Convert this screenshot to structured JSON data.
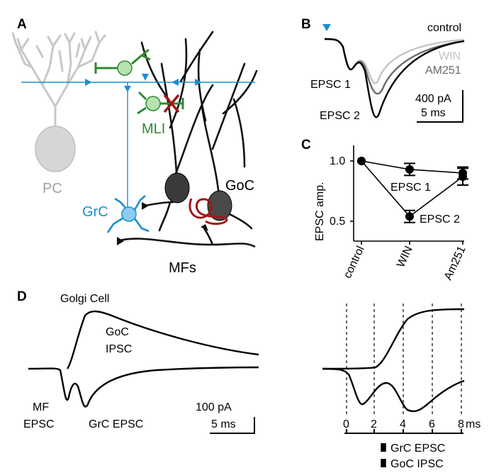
{
  "panels": {
    "a": "A",
    "b": "B",
    "c": "C",
    "d": "D"
  },
  "panel_a": {
    "pc_label": "PC",
    "mli_label": "MLI",
    "goc_label": "GoC",
    "grc_label": "GrC",
    "mf_label": "MFs",
    "colors": {
      "pc": "#c8c8c8",
      "mli": "#2e8b2e",
      "grc": "#1a8fd0",
      "goc": "#333333",
      "inhibit": "#a01818"
    }
  },
  "panel_b": {
    "legend": [
      "control",
      "WIN",
      "AM251"
    ],
    "epsc1_label": "EPSC 1",
    "epsc2_label": "EPSC 2",
    "scale_amp": "400 pA",
    "scale_time": "5  ms"
  },
  "panel_c": {
    "ylabel": "EPSC amp.",
    "yticks": [
      "1.0",
      "0.5"
    ],
    "xticks": [
      "control",
      "WIN",
      "Am251"
    ],
    "epsc1_label": "EPSC 1",
    "epsc2_label": "EPSC 2"
  },
  "chart_data": {
    "type": "line",
    "categories": [
      "control",
      "WIN",
      "Am251"
    ],
    "series": [
      {
        "name": "EPSC 1",
        "values": [
          1.0,
          0.93,
          0.9
        ],
        "errors": [
          0.0,
          0.05,
          0.05
        ]
      },
      {
        "name": "EPSC 2",
        "values": [
          1.0,
          0.54,
          0.87
        ],
        "errors": [
          0.0,
          0.05,
          0.07
        ]
      }
    ],
    "ylabel": "EPSC amp.",
    "ylim": [
      0.4,
      1.05
    ]
  },
  "panel_d": {
    "golgi_label": "Golgi Cell",
    "goc_ipsc_line1": "GoC",
    "goc_ipsc_line2": "IPSC",
    "mf_line1": "MF",
    "mf_line2": "EPSC",
    "grc_epsc_label": "GrC EPSC",
    "scale_amp": "100 pA",
    "scale_time": "5 ms",
    "time_ticks": [
      "0",
      "2",
      "4",
      "6",
      "8"
    ],
    "time_unit": "ms",
    "legend_grc": "GrC EPSC",
    "legend_goc": "GoC IPSC"
  }
}
